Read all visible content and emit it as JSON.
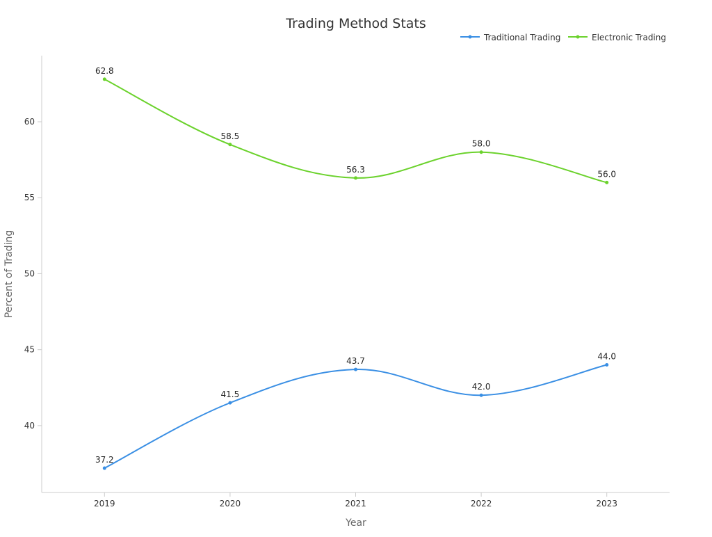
{
  "chart_data": {
    "type": "line",
    "title": "Trading Method Stats",
    "xlabel": "Year",
    "ylabel": "Percent of Trading",
    "categories": [
      "2019",
      "2020",
      "2021",
      "2022",
      "2023"
    ],
    "ylim": [
      35.6,
      64.35
    ],
    "yticks": [
      40,
      45,
      50,
      55,
      60
    ],
    "grid": false,
    "legend_position": "top-right",
    "smooth": true,
    "series": [
      {
        "name": "Traditional Trading",
        "color": "#3a8fe4",
        "values": [
          37.2,
          41.5,
          43.7,
          42.0,
          44.0
        ],
        "labels": [
          "37.2",
          "41.5",
          "43.7",
          "42.0",
          "44.0"
        ]
      },
      {
        "name": "Electronic Trading",
        "color": "#6bd22c",
        "values": [
          62.8,
          58.5,
          56.3,
          58.0,
          56.0
        ],
        "labels": [
          "62.8",
          "58.5",
          "56.3",
          "58.0",
          "56.0"
        ]
      }
    ]
  }
}
